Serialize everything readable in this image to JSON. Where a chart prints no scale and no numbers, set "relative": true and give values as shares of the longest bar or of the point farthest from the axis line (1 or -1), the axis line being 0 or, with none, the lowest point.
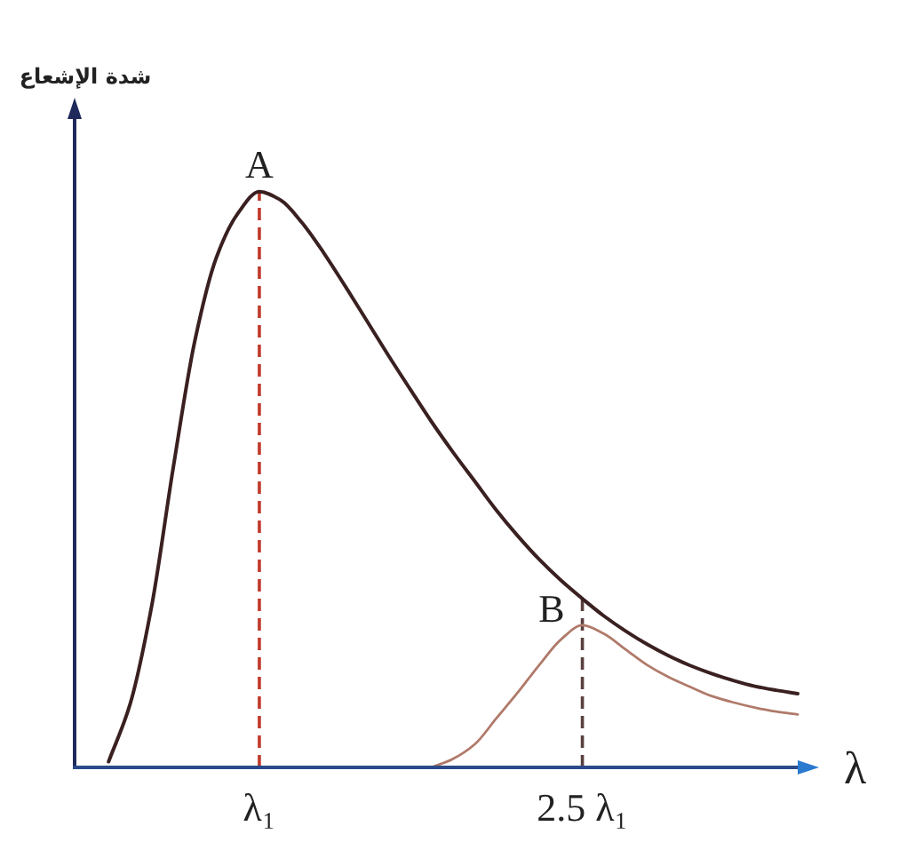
{
  "chart_data": {
    "type": "line",
    "relative": true,
    "ylabel": "شدة الإشعاع",
    "xlabel": "λ",
    "categories": [
      null,
      null,
      null,
      null,
      null,
      null,
      null,
      null,
      "λ₁",
      null,
      null,
      null,
      null,
      null,
      null,
      null,
      null,
      null,
      null,
      null,
      null,
      null,
      null,
      "2.5 λ₁",
      null,
      null,
      null,
      null,
      null,
      null,
      null,
      null,
      null,
      null
    ],
    "series": [
      {
        "name": "A",
        "color": "#3a2020",
        "values": [
          null,
          0.01,
          0.11,
          0.28,
          0.52,
          0.74,
          0.885,
          0.962,
          1,
          0.985,
          0.945,
          0.893,
          0.835,
          0.775,
          0.715,
          0.657,
          0.6,
          0.547,
          0.497,
          0.447,
          0.402,
          0.361,
          0.325,
          0.293,
          0.263,
          0.237,
          0.214,
          0.194,
          0.177,
          0.163,
          0.151,
          0.141,
          0.134,
          0.128
        ]
      },
      {
        "name": "B",
        "color": "#b07a6a",
        "values": [
          null,
          null,
          null,
          null,
          null,
          null,
          null,
          null,
          null,
          null,
          null,
          null,
          null,
          null,
          null,
          null,
          0,
          0.015,
          0.04,
          0.085,
          0.13,
          0.178,
          0.222,
          0.247,
          0.232,
          0.205,
          0.178,
          0.157,
          0.14,
          0.124,
          0.113,
          0.104,
          0.097,
          0.092
        ]
      }
    ],
    "ref_lines": [
      {
        "axis": "x",
        "value": "λ₁",
        "color": "#c0392b",
        "line_style": "dashed"
      },
      {
        "axis": "x",
        "value": "2.5 λ₁",
        "color": "#5a4040",
        "line_style": "dashed"
      }
    ]
  }
}
